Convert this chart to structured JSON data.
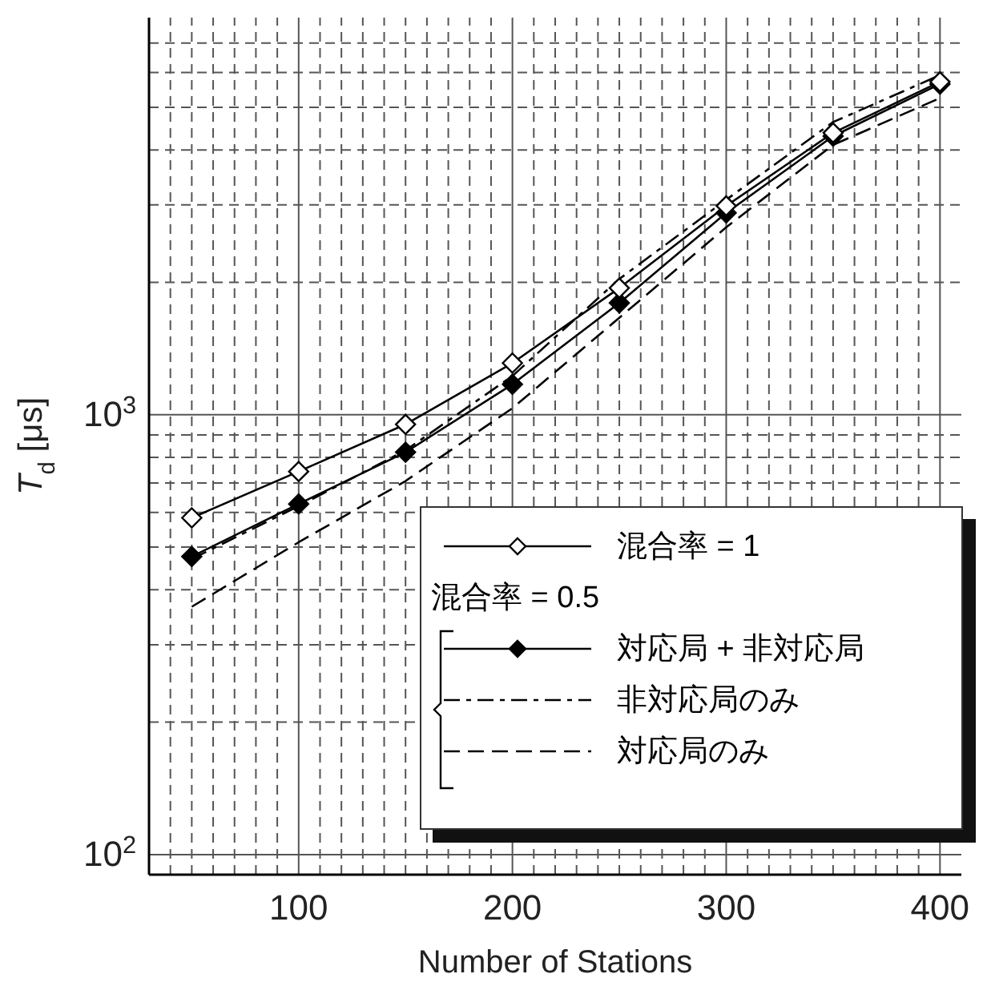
{
  "chart_data": {
    "type": "line",
    "xlabel": "Number of Stations",
    "ylabel": "T$_{d}$ [μs]",
    "log": "y",
    "grid": true,
    "legend": "bottom right",
    "legend_title": "混合率 = 0.5",
    "x": [
      50,
      100,
      150,
      200,
      250,
      300,
      350,
      400
    ],
    "xlim": [
      30,
      410
    ],
    "ylim": [
      90,
      8000
    ],
    "xticks": [
      {
        "value": 40,
        "label": null
      },
      {
        "value": 50,
        "label": null
      },
      {
        "value": 60,
        "label": null
      },
      {
        "value": 70,
        "label": null
      },
      {
        "value": 80,
        "label": null
      },
      {
        "value": 90,
        "label": null
      },
      100,
      {
        "value": 110,
        "label": null
      },
      {
        "value": 120,
        "label": null
      },
      {
        "value": 130,
        "label": null
      },
      {
        "value": 140,
        "label": null
      },
      {
        "value": 150,
        "label": null
      },
      {
        "value": 160,
        "label": null
      },
      {
        "value": 170,
        "label": null
      },
      {
        "value": 180,
        "label": null
      },
      {
        "value": 190,
        "label": null
      },
      200,
      {
        "value": 210,
        "label": null
      },
      {
        "value": 220,
        "label": null
      },
      {
        "value": 230,
        "label": null
      },
      {
        "value": 240,
        "label": null
      },
      {
        "value": 250,
        "label": null
      },
      {
        "value": 260,
        "label": null
      },
      {
        "value": 270,
        "label": null
      },
      {
        "value": 280,
        "label": null
      },
      {
        "value": 290,
        "label": null
      },
      300,
      {
        "value": 310,
        "label": null
      },
      {
        "value": 320,
        "label": null
      },
      {
        "value": 330,
        "label": null
      },
      {
        "value": 340,
        "label": null
      },
      {
        "value": 350,
        "label": null
      },
      {
        "value": 360,
        "label": null
      },
      {
        "value": 370,
        "label": null
      },
      {
        "value": 380,
        "label": null
      },
      {
        "value": 390,
        "label": null
      },
      400
    ],
    "yticks": [
      {
        "value": 100,
        "label": "10$^{2}$"
      },
      {
        "value": 200,
        "label": null
      },
      {
        "value": 300,
        "label": null
      },
      {
        "value": 400,
        "label": null
      },
      {
        "value": 500,
        "label": null
      },
      {
        "value": 600,
        "label": null
      },
      {
        "value": 700,
        "label": null
      },
      {
        "value": 800,
        "label": null
      },
      {
        "value": 900,
        "label": null
      },
      {
        "value": 1000,
        "label": "10$^{3}$"
      },
      {
        "value": 2000,
        "label": null
      },
      {
        "value": 3000,
        "label": null
      },
      {
        "value": 4000,
        "label": null
      },
      {
        "value": 5000,
        "label": null
      },
      {
        "value": 6000,
        "label": null
      },
      {
        "value": 7000,
        "label": null
      }
    ],
    "series": [
      {
        "name": "混合率 = 1",
        "color": "#000000",
        "marker": "diamond-open",
        "line_style": "solid",
        "values": [
          583,
          743,
          951,
          1311,
          1942,
          2985,
          4377,
          5718
        ]
      },
      {
        "name": "対応局 + 非対応局",
        "color": "#000000",
        "marker": "diamond",
        "line_style": "solid",
        "values": [
          476,
          627,
          822,
          1173,
          1796,
          2877,
          4300,
          5650
        ]
      },
      {
        "name": "非対応局のみ",
        "color": "#000000",
        "marker": "none",
        "line_style": "dashdot",
        "values": [
          470,
          620,
          830,
          1225,
          2036,
          3083,
          4630,
          5920
        ]
      },
      {
        "name": "対応局のみ",
        "color": "#000000",
        "marker": "none",
        "line_style": "dashed",
        "values": [
          366,
          513,
          707,
          1035,
          1662,
          2669,
          4110,
          5250
        ]
      }
    ]
  }
}
